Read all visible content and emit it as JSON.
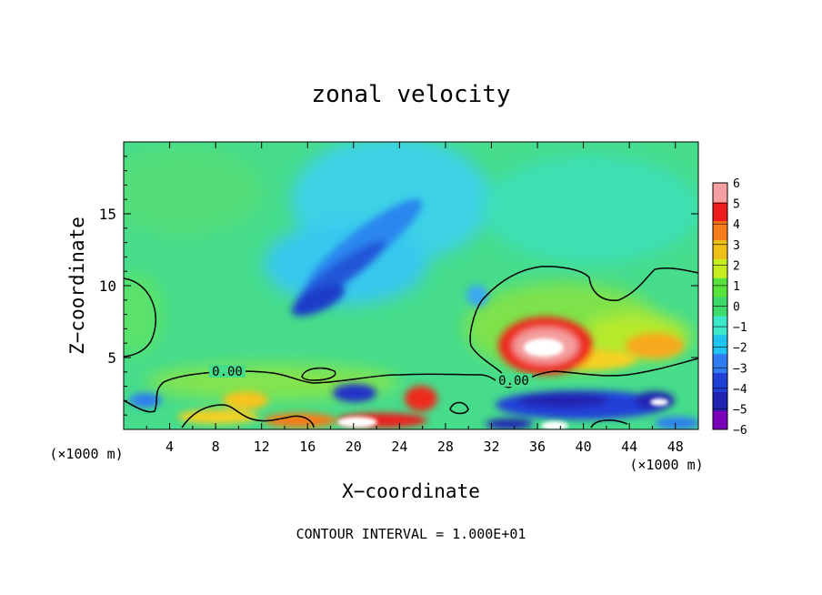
{
  "chart_data": {
    "type": "heatmap",
    "title": "zonal velocity",
    "xlabel": "X−coordinate",
    "ylabel": "Z−coordinate",
    "x_unit_left": "(×1000 m)",
    "x_unit_right": "(×1000 m)",
    "footer": "CONTOUR INTERVAL = 1.000E+01",
    "xlim": [
      0,
      50
    ],
    "ylim": [
      0,
      20
    ],
    "x_ticks": [
      "4",
      "8",
      "12",
      "16",
      "20",
      "24",
      "28",
      "32",
      "36",
      "40",
      "44",
      "48"
    ],
    "y_ticks": [
      "5",
      "10",
      "15"
    ],
    "contour_labels": [
      "0.00",
      "0.00"
    ],
    "colorbar": {
      "labels": [
        "6",
        "5",
        "4",
        "3",
        "2",
        "1",
        "0",
        "−1",
        "−2",
        "−3",
        "−4",
        "−5",
        "−6"
      ],
      "levels": [
        -6,
        -5,
        -4,
        -3,
        -2,
        -1,
        0,
        1,
        2,
        3,
        4,
        5,
        6
      ],
      "colors": [
        "#7a00b8",
        "#2222b0",
        "#2040d8",
        "#2f7df0",
        "#1fc4f0",
        "#3ce8c8",
        "#3fd86a",
        "#58e23c",
        "#c8ee22",
        "#f0c018",
        "#f77a18",
        "#ee1c1c",
        "#f4a0a0"
      ]
    },
    "features": [
      {
        "name": "upper negative jet",
        "x": [
          14,
          24
        ],
        "z": [
          8,
          15
        ],
        "value": -3
      },
      {
        "name": "positive core",
        "x": [
          34,
          39
        ],
        "z": [
          4,
          7
        ],
        "value": 6
      },
      {
        "name": "low-level negative band",
        "x": [
          33,
          44
        ],
        "z": [
          1,
          3
        ],
        "value": -4
      },
      {
        "name": "near-surface positive cells",
        "x": [
          14,
          27
        ],
        "z": [
          0,
          2
        ],
        "value": 5
      }
    ]
  }
}
